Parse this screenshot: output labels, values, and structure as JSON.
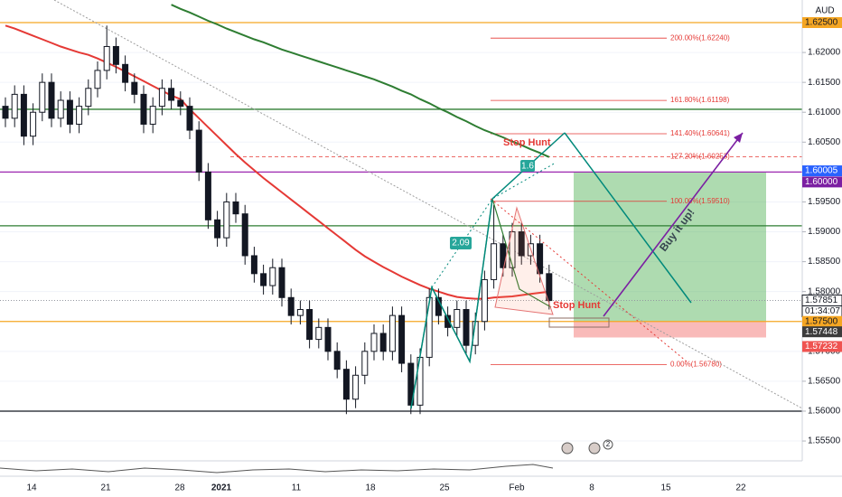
{
  "chart_data": {
    "type": "candlestick",
    "currency": "AUD",
    "ylim": [
      1.55168,
      1.62878
    ],
    "yticks": [
      {
        "value": 1.62,
        "label": "1.62000"
      },
      {
        "value": 1.615,
        "label": "1.61500"
      },
      {
        "value": 1.61,
        "label": "1.61000"
      },
      {
        "value": 1.605,
        "label": "1.60500"
      },
      {
        "value": 1.595,
        "label": "1.59500"
      },
      {
        "value": 1.59,
        "label": "1.59000"
      },
      {
        "value": 1.585,
        "label": "1.58500"
      },
      {
        "value": 1.58,
        "label": "1.58000"
      },
      {
        "value": 1.57,
        "label": "1.57000"
      },
      {
        "value": 1.565,
        "label": "1.56500"
      },
      {
        "value": 1.56,
        "label": "1.56000"
      },
      {
        "value": 1.555,
        "label": "1.55500"
      }
    ],
    "price_tags": [
      {
        "value": 1.625,
        "label": "1.62500",
        "color": "#f5a623",
        "text_color": "#131722"
      },
      {
        "value": 1.60005,
        "label": "1.60005",
        "color": "#2962ff",
        "text_color": "#ffffff"
      },
      {
        "value": 1.6,
        "label": "1.60000",
        "color": "#7b1fa2",
        "text_color": "#ffffff"
      },
      {
        "value": 1.57851,
        "label": "1.57851",
        "color": "#ffffff",
        "text_color": "#131722"
      },
      {
        "value": 1.575,
        "label": "1.57500",
        "color": "#f5a623",
        "text_color": "#131722"
      },
      {
        "value": 1.57448,
        "label": "1.57448",
        "color": "#3c3c3c",
        "text_color": "#ffffff"
      },
      {
        "value": 1.57232,
        "label": "1.57232",
        "color": "#ef5350",
        "text_color": "#ffffff"
      }
    ],
    "countdown": "01:34:07",
    "x_labels": [
      "14",
      "21",
      "28",
      "2021",
      "11",
      "18",
      "25",
      "Feb",
      "8",
      "15",
      "22"
    ],
    "hlines": [
      {
        "value": 1.625,
        "color": "#f5a623"
      },
      {
        "value": 1.6105,
        "color": "#2e7d32"
      },
      {
        "value": 1.6,
        "color": "#9c27b0"
      },
      {
        "value": 1.591,
        "color": "#2e7d32"
      },
      {
        "value": 1.575,
        "color": "#f5a623"
      },
      {
        "value": 1.56,
        "color": "#131722"
      }
    ],
    "fib_levels": [
      {
        "label": "200.00%(1.62240)",
        "value": 1.6224
      },
      {
        "label": "161.80%(1.61198)",
        "value": 1.61198
      },
      {
        "label": "141.40%(1.60641)",
        "value": 1.60641
      },
      {
        "label": "127.20%(1.60253)",
        "value": 1.60253
      },
      {
        "label": "100.00%(1.59510)",
        "value": 1.5951
      },
      {
        "label": "0.00%(1.56780)",
        "value": 1.5678
      }
    ],
    "position": {
      "target": 1.60005,
      "entry": 1.575,
      "stop": 1.57232
    },
    "annotations": [
      "Stop Hunt",
      "Stop Hunt",
      "1.6",
      "2.09",
      "Buy it up!"
    ],
    "badge": "2",
    "series": [
      {
        "name": "open",
        "values": [
          1.611,
          1.609,
          1.613,
          1.606,
          1.61,
          1.615,
          1.609,
          1.612,
          1.608,
          1.611,
          1.614,
          1.617,
          1.621,
          1.618,
          1.615,
          1.613,
          1.608,
          1.611,
          1.614,
          1.612,
          1.611,
          1.607,
          1.6,
          1.592,
          1.589,
          1.595,
          1.593,
          1.586,
          1.583,
          1.581,
          1.584,
          1.579,
          1.576,
          1.577,
          1.572,
          1.574,
          1.57,
          1.567,
          1.562,
          1.566,
          1.57,
          1.573,
          1.57,
          1.576,
          1.568,
          1.561,
          1.569,
          1.579,
          1.576,
          1.574,
          1.577,
          1.571,
          1.575,
          1.582,
          1.588,
          1.584,
          1.59,
          1.586,
          1.588,
          1.583
        ]
      },
      {
        "name": "high",
        "values": [
          1.6125,
          1.6145,
          1.6145,
          1.6115,
          1.6165,
          1.6165,
          1.6135,
          1.6135,
          1.6125,
          1.6155,
          1.6185,
          1.6245,
          1.6225,
          1.6195,
          1.6165,
          1.6145,
          1.6125,
          1.6155,
          1.6155,
          1.6135,
          1.6125,
          1.6085,
          1.6015,
          1.5935,
          1.5965,
          1.5965,
          1.5945,
          1.5875,
          1.5845,
          1.5855,
          1.5855,
          1.5805,
          1.5785,
          1.5785,
          1.5755,
          1.5755,
          1.5715,
          1.5685,
          1.5675,
          1.5715,
          1.5745,
          1.5745,
          1.5775,
          1.5775,
          1.5695,
          1.5705,
          1.5805,
          1.5805,
          1.5775,
          1.5785,
          1.5785,
          1.5765,
          1.5835,
          1.5945,
          1.5895,
          1.5915,
          1.5915,
          1.5895,
          1.5895,
          1.5845
        ]
      },
      {
        "name": "low",
        "values": [
          1.6075,
          1.6075,
          1.6045,
          1.6045,
          1.6085,
          1.6075,
          1.6075,
          1.6065,
          1.6065,
          1.6095,
          1.6125,
          1.6155,
          1.6165,
          1.6135,
          1.6115,
          1.6065,
          1.6065,
          1.6095,
          1.6105,
          1.6095,
          1.6055,
          1.5985,
          1.5905,
          1.5875,
          1.5875,
          1.5915,
          1.5845,
          1.5815,
          1.5795,
          1.5795,
          1.5775,
          1.5745,
          1.5745,
          1.5705,
          1.5705,
          1.5685,
          1.5655,
          1.5595,
          1.5605,
          1.5645,
          1.5685,
          1.5685,
          1.5685,
          1.5665,
          1.5595,
          1.5595,
          1.5675,
          1.5745,
          1.5725,
          1.5725,
          1.5695,
          1.5695,
          1.5735,
          1.5805,
          1.5825,
          1.5825,
          1.5845,
          1.5845,
          1.5815,
          1.577
        ]
      },
      {
        "name": "close",
        "values": [
          1.609,
          1.613,
          1.606,
          1.61,
          1.615,
          1.609,
          1.612,
          1.608,
          1.611,
          1.614,
          1.617,
          1.621,
          1.618,
          1.615,
          1.613,
          1.608,
          1.611,
          1.614,
          1.612,
          1.611,
          1.607,
          1.6,
          1.592,
          1.589,
          1.595,
          1.593,
          1.586,
          1.583,
          1.581,
          1.584,
          1.579,
          1.576,
          1.577,
          1.572,
          1.574,
          1.57,
          1.567,
          1.562,
          1.566,
          1.57,
          1.573,
          1.57,
          1.576,
          1.568,
          1.561,
          1.569,
          1.579,
          1.576,
          1.574,
          1.577,
          1.571,
          1.575,
          1.582,
          1.588,
          1.584,
          1.59,
          1.586,
          1.588,
          1.583,
          1.5785
        ]
      }
    ],
    "moving_averages": [
      {
        "color": "#e53935",
        "values": [
          1.6245,
          1.624,
          1.6234,
          1.6228,
          1.6222,
          1.6216,
          1.621,
          1.6205,
          1.62,
          1.6196,
          1.619,
          1.6183,
          1.6176,
          1.6168,
          1.616,
          1.6152,
          1.6144,
          1.6136,
          1.6128,
          1.6122,
          1.6105,
          1.609,
          1.6075,
          1.606,
          1.6045,
          1.603,
          1.6016,
          1.6003,
          1.599,
          1.5978,
          1.5966,
          1.5954,
          1.5942,
          1.593,
          1.5918,
          1.5906,
          1.5894,
          1.5882,
          1.587,
          1.5859,
          1.585,
          1.5841,
          1.5833,
          1.5825,
          1.5818,
          1.5811,
          1.5805,
          1.58,
          1.5795,
          1.5791,
          1.5789,
          1.5788,
          1.5788,
          1.579,
          1.5791,
          1.5792,
          1.5794,
          1.5796,
          1.5798,
          1.58
        ]
      },
      {
        "color": "#2e7d32",
        "values": [
          null,
          null,
          null,
          null,
          null,
          null,
          null,
          null,
          null,
          null,
          null,
          null,
          null,
          null,
          null,
          null,
          null,
          null,
          1.628,
          1.6273,
          1.6267,
          1.626,
          1.6253,
          1.6247,
          1.624,
          1.6234,
          1.6228,
          1.6222,
          1.6217,
          1.6211,
          1.6205,
          1.62,
          1.6195,
          1.619,
          1.6185,
          1.618,
          1.6175,
          1.617,
          1.6165,
          1.616,
          1.6155,
          1.6149,
          1.6143,
          1.6136,
          1.613,
          1.6122,
          1.6115,
          1.6107,
          1.61,
          1.6092,
          1.6085,
          1.6077,
          1.607,
          1.6064,
          1.6058,
          1.6051,
          1.6045,
          1.6038,
          1.6032,
          1.6025
        ]
      }
    ]
  }
}
